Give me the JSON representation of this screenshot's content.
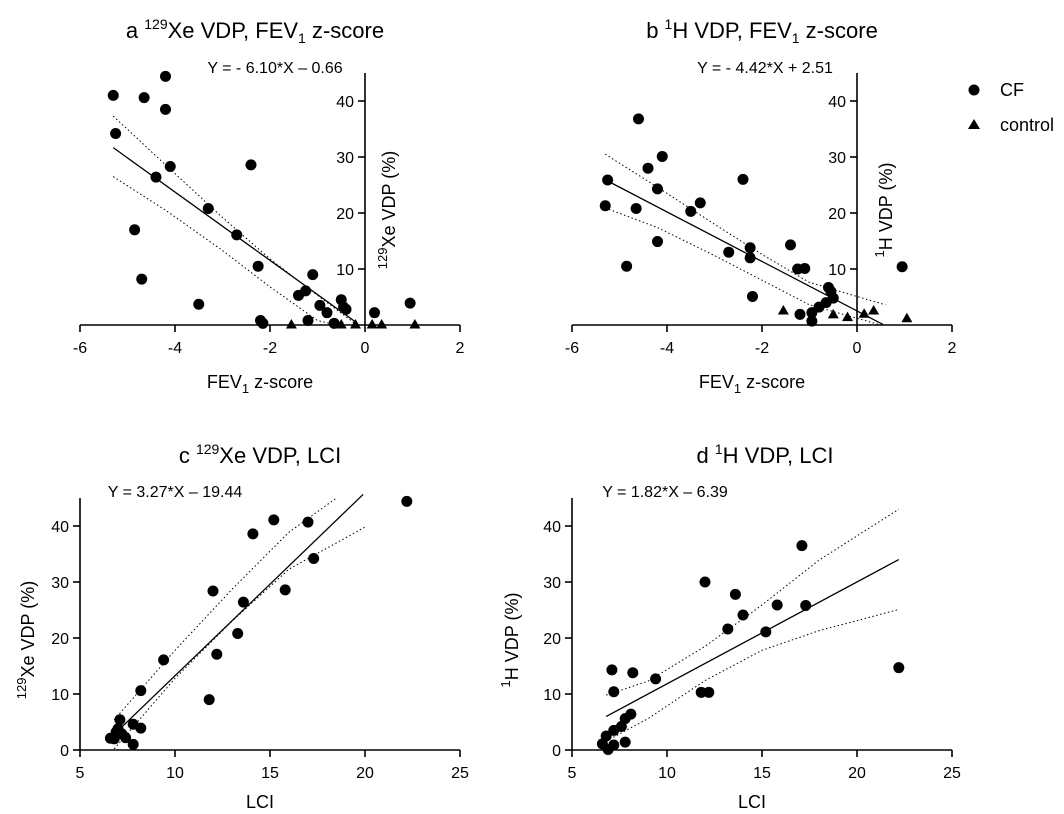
{
  "legend": {
    "items": [
      {
        "label": "CF",
        "marker": "circle"
      },
      {
        "label": "control",
        "marker": "triangle"
      }
    ]
  },
  "chart_data": [
    {
      "id": "a",
      "type": "scatter",
      "panel_letter": "a",
      "title": {
        "pre": "",
        "sup1": "129",
        "mid": "Xe VDP, FEV",
        "sub": "1",
        "post": " z-score"
      },
      "equation": "Y = - 6.10*X – 0.66",
      "xlabel": {
        "pre": "FEV",
        "sub": "1",
        "post": " z-score"
      },
      "ylabel": {
        "sup": "129",
        "main": "Xe VDP (%)"
      },
      "xlim": [
        -6,
        2
      ],
      "ylim": [
        0,
        45
      ],
      "xticks": [
        -6,
        -4,
        -2,
        0,
        2
      ],
      "yticks": [
        10,
        20,
        30,
        40
      ],
      "y_axis_at_x": 0,
      "series": [
        {
          "name": "CF",
          "marker": "circle",
          "points": [
            [
              -5.3,
              41
            ],
            [
              -5.25,
              34.2
            ],
            [
              -4.65,
              40.6
            ],
            [
              -4.2,
              44.4
            ],
            [
              -4.2,
              38.5
            ],
            [
              -4.1,
              28.3
            ],
            [
              -4.4,
              26.4
            ],
            [
              -2.4,
              28.6
            ],
            [
              -3.3,
              20.8
            ],
            [
              -2.7,
              16.1
            ],
            [
              -4.85,
              17
            ],
            [
              -2.25,
              10.5
            ],
            [
              -4.7,
              8.2
            ],
            [
              -3.5,
              3.7
            ],
            [
              -2.2,
              0.8
            ],
            [
              -2.15,
              0.3
            ],
            [
              -1.1,
              9.0
            ],
            [
              -1.25,
              6.1
            ],
            [
              -1.4,
              5.3
            ],
            [
              -0.95,
              3.5
            ],
            [
              -0.5,
              4.5
            ],
            [
              -0.45,
              3.2
            ],
            [
              -0.4,
              2.8
            ],
            [
              -0.8,
              2.2
            ],
            [
              -1.2,
              0.8
            ],
            [
              -0.65,
              0.3
            ],
            [
              0.2,
              2.2
            ],
            [
              0.95,
              3.9
            ]
          ]
        },
        {
          "name": "control",
          "marker": "triangle",
          "points": [
            [
              -1.55,
              0.1
            ],
            [
              -0.5,
              0.1
            ],
            [
              -0.2,
              0.1
            ],
            [
              0.15,
              0.1
            ],
            [
              0.35,
              0.1
            ],
            [
              1.05,
              0.1
            ]
          ]
        }
      ],
      "fit": {
        "slope": -6.1,
        "intercept": -0.66,
        "x_range": [
          -5.3,
          -0.2
        ]
      },
      "ci_band": {
        "upper": [
          [
            -5.3,
            37.3
          ],
          [
            -4.2,
            28.6
          ],
          [
            -3.0,
            19.2
          ],
          [
            -2.0,
            11.8
          ],
          [
            -1.0,
            5.3
          ],
          [
            -0.2,
            0.2
          ]
        ],
        "lower": [
          [
            -5.3,
            26.5
          ],
          [
            -4.2,
            20.5
          ],
          [
            -3.0,
            13.3
          ],
          [
            -2.0,
            6.8
          ],
          [
            -1.0,
            0.8
          ],
          [
            -0.6,
            0.0
          ]
        ]
      }
    },
    {
      "id": "b",
      "type": "scatter",
      "panel_letter": "b",
      "title": {
        "pre": "",
        "sup1": "1",
        "mid": "H VDP, FEV",
        "sub": "1",
        "post": " z-score"
      },
      "equation": "Y = - 4.42*X + 2.51",
      "xlabel": {
        "pre": "FEV",
        "sub": "1",
        "post": " z-score"
      },
      "ylabel": {
        "sup": "1",
        "main": "H VDP (%)"
      },
      "xlim": [
        -6,
        2
      ],
      "ylim": [
        0,
        45
      ],
      "xticks": [
        -6,
        -4,
        -2,
        0,
        2
      ],
      "yticks": [
        10,
        20,
        30,
        40
      ],
      "y_axis_at_x": 0,
      "series": [
        {
          "name": "CF",
          "marker": "circle",
          "points": [
            [
              -4.6,
              36.8
            ],
            [
              -4.4,
              28.0
            ],
            [
              -4.1,
              30.1
            ],
            [
              -4.2,
              24.3
            ],
            [
              -5.25,
              25.9
            ],
            [
              -5.3,
              21.3
            ],
            [
              -4.65,
              20.8
            ],
            [
              -3.5,
              20.3
            ],
            [
              -3.3,
              21.8
            ],
            [
              -2.4,
              26.0
            ],
            [
              -4.2,
              14.9
            ],
            [
              -2.25,
              13.8
            ],
            [
              -2.25,
              12.0
            ],
            [
              -2.7,
              13.0
            ],
            [
              -4.85,
              10.5
            ],
            [
              -2.2,
              5.1
            ],
            [
              -1.4,
              14.3
            ],
            [
              -1.25,
              10.0
            ],
            [
              -1.1,
              10.1
            ],
            [
              -0.6,
              6.7
            ],
            [
              -0.55,
              6.0
            ],
            [
              -0.5,
              4.8
            ],
            [
              -0.65,
              4.0
            ],
            [
              -0.8,
              3.2
            ],
            [
              -0.95,
              2.2
            ],
            [
              -1.2,
              1.9
            ],
            [
              -0.95,
              0.7
            ],
            [
              0.95,
              10.4
            ]
          ]
        },
        {
          "name": "control",
          "marker": "triangle",
          "points": [
            [
              -1.55,
              2.6
            ],
            [
              -0.5,
              1.9
            ],
            [
              -0.2,
              1.4
            ],
            [
              0.15,
              2.0
            ],
            [
              0.35,
              2.6
            ],
            [
              1.05,
              1.2
            ]
          ]
        }
      ],
      "fit": {
        "slope": -4.42,
        "intercept": 2.51,
        "x_range": [
          -5.3,
          0.55
        ]
      },
      "ci_band": {
        "upper": [
          [
            -5.3,
            30.5
          ],
          [
            -4.2,
            24.6
          ],
          [
            -3.0,
            18.0
          ],
          [
            -2.0,
            12.6
          ],
          [
            -1.0,
            7.6
          ],
          [
            0.6,
            3.6
          ]
        ],
        "lower": [
          [
            -5.3,
            20.9
          ],
          [
            -4.2,
            17.4
          ],
          [
            -3.0,
            12.4
          ],
          [
            -2.0,
            8.0
          ],
          [
            -1.0,
            3.6
          ],
          [
            0.5,
            0.0
          ]
        ]
      }
    },
    {
      "id": "c",
      "type": "scatter",
      "panel_letter": "c",
      "title": {
        "pre": "",
        "sup1": "129",
        "mid": "Xe VDP, LCI",
        "sub": "",
        "post": ""
      },
      "equation": "Y = 3.27*X – 19.44",
      "xlabel": {
        "pre": "LCI",
        "sub": "",
        "post": ""
      },
      "ylabel": {
        "sup": "129",
        "main": "Xe VDP (%)"
      },
      "xlim": [
        5,
        25
      ],
      "ylim": [
        0,
        45
      ],
      "xticks": [
        5,
        10,
        15,
        20,
        25
      ],
      "yticks": [
        0,
        10,
        20,
        30,
        40
      ],
      "y_axis_at_x": 5,
      "series": [
        {
          "name": "CF",
          "marker": "circle",
          "points": [
            [
              22.2,
              44.4
            ],
            [
              15.2,
              41.1
            ],
            [
              17.0,
              40.7
            ],
            [
              14.1,
              38.6
            ],
            [
              17.3,
              34.2
            ],
            [
              12.0,
              28.4
            ],
            [
              15.8,
              28.6
            ],
            [
              13.6,
              26.4
            ],
            [
              13.3,
              20.8
            ],
            [
              12.2,
              17.1
            ],
            [
              9.4,
              16.1
            ],
            [
              11.8,
              9.0
            ],
            [
              8.2,
              10.6
            ],
            [
              7.1,
              5.4
            ],
            [
              7.0,
              3.8
            ],
            [
              7.2,
              2.9
            ],
            [
              7.4,
              2.2
            ],
            [
              7.8,
              1.0
            ],
            [
              6.6,
              2.1
            ],
            [
              6.9,
              3.2
            ],
            [
              8.2,
              3.9
            ],
            [
              7.8,
              4.6
            ],
            [
              6.8,
              2.0
            ]
          ]
        }
      ],
      "fit": {
        "slope": 3.27,
        "intercept": -19.44,
        "x_range": [
          6.8,
          19.9
        ]
      },
      "ci_band": {
        "upper": [
          [
            6.8,
            5.4
          ],
          [
            10,
            17.8
          ],
          [
            13,
            28.7
          ],
          [
            16,
            38.9
          ],
          [
            18.5,
            45.0
          ]
        ],
        "lower": [
          [
            6.8,
            0.2
          ],
          [
            10,
            12.8
          ],
          [
            13,
            23.0
          ],
          [
            16,
            32.3
          ],
          [
            20,
            39.8
          ]
        ]
      }
    },
    {
      "id": "d",
      "type": "scatter",
      "panel_letter": "d",
      "title": {
        "pre": "",
        "sup1": "1",
        "mid": "H VDP, LCI",
        "sub": "",
        "post": ""
      },
      "equation": "Y = 1.82*X – 6.39",
      "xlabel": {
        "pre": "LCI",
        "sub": "",
        "post": ""
      },
      "ylabel": {
        "sup": "1",
        "main": "H VDP (%)"
      },
      "xlim": [
        5,
        25
      ],
      "ylim": [
        0,
        45
      ],
      "xticks": [
        5,
        10,
        15,
        20,
        25
      ],
      "yticks": [
        0,
        10,
        20,
        30,
        40
      ],
      "y_axis_at_x": 5,
      "series": [
        {
          "name": "CF",
          "marker": "circle",
          "points": [
            [
              17.1,
              36.5
            ],
            [
              12.0,
              30.0
            ],
            [
              13.6,
              27.8
            ],
            [
              15.8,
              25.9
            ],
            [
              17.3,
              25.8
            ],
            [
              14.0,
              24.1
            ],
            [
              13.2,
              21.6
            ],
            [
              15.2,
              21.1
            ],
            [
              22.2,
              14.7
            ],
            [
              7.1,
              14.3
            ],
            [
              8.2,
              13.8
            ],
            [
              9.4,
              12.7
            ],
            [
              11.8,
              10.3
            ],
            [
              12.2,
              10.3
            ],
            [
              7.2,
              10.4
            ],
            [
              8.1,
              6.4
            ],
            [
              7.8,
              5.6
            ],
            [
              7.6,
              4.2
            ],
            [
              7.2,
              3.5
            ],
            [
              6.8,
              2.5
            ],
            [
              6.6,
              1.1
            ],
            [
              6.9,
              0.1
            ],
            [
              7.2,
              0.9
            ],
            [
              7.8,
              1.4
            ]
          ]
        }
      ],
      "fit": {
        "slope": 1.82,
        "intercept": -6.39,
        "x_range": [
          6.8,
          22.2
        ]
      },
      "ci_band": {
        "upper": [
          [
            6.8,
            9.8
          ],
          [
            9,
            12.3
          ],
          [
            12,
            18.5
          ],
          [
            15,
            25.9
          ],
          [
            18,
            33.9
          ],
          [
            22.2,
            43.0
          ]
        ],
        "lower": [
          [
            6.8,
            1.6
          ],
          [
            9,
            5.6
          ],
          [
            12,
            12.4
          ],
          [
            15,
            17.8
          ],
          [
            18,
            21.3
          ],
          [
            22.2,
            25.1
          ]
        ]
      }
    }
  ]
}
